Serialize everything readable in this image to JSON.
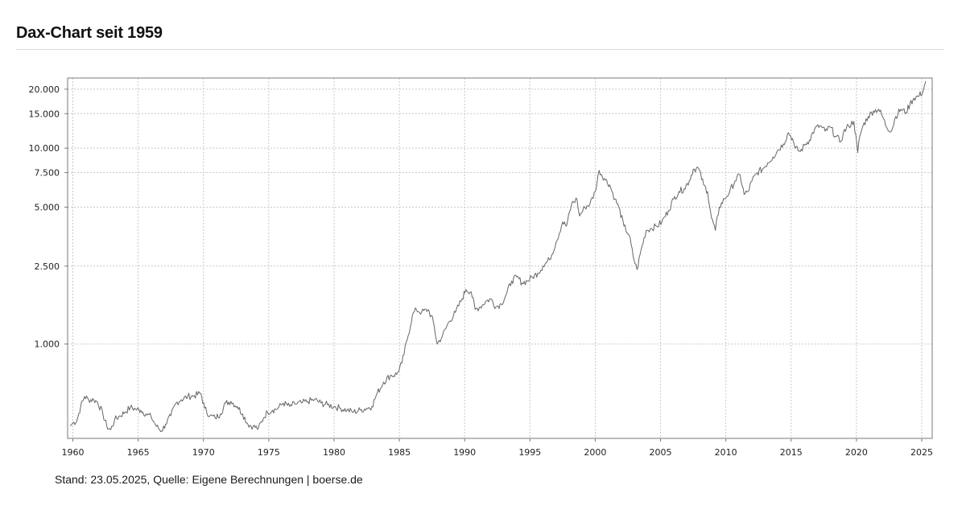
{
  "header": {
    "title": "Dax-Chart seit 1959"
  },
  "footer": {
    "source": "Stand: 23.05.2025, Quelle: Eigene Berechnungen | boerse.de"
  },
  "chart_data": {
    "type": "line",
    "title": "",
    "xlabel": "",
    "ylabel": "",
    "y_scale": "log",
    "grid": true,
    "xlim": [
      1959.6,
      2025.8
    ],
    "ylim": [
      330,
      22800
    ],
    "x_ticks": [
      1960,
      1965,
      1970,
      1975,
      1980,
      1985,
      1990,
      1995,
      2000,
      2005,
      2010,
      2015,
      2020,
      2025
    ],
    "y_ticks": [
      {
        "value": 1000,
        "label": "1.000"
      },
      {
        "value": 2500,
        "label": "2.500"
      },
      {
        "value": 5000,
        "label": "5.000"
      },
      {
        "value": 7500,
        "label": "7.500"
      },
      {
        "value": 10000,
        "label": "10.000"
      },
      {
        "value": 15000,
        "label": "15.000"
      },
      {
        "value": 20000,
        "label": "20.000"
      }
    ],
    "series": [
      {
        "color": "#666666",
        "x": [
          1959.8,
          1960.0,
          1960.3,
          1960.6,
          1960.9,
          1961.2,
          1961.6,
          1961.9,
          1962.3,
          1962.6,
          1962.9,
          1963.2,
          1963.6,
          1964.0,
          1964.4,
          1964.8,
          1965.2,
          1965.6,
          1966.0,
          1966.4,
          1966.8,
          1967.1,
          1967.5,
          1967.9,
          1968.3,
          1968.8,
          1969.3,
          1969.8,
          1970.1,
          1970.5,
          1970.9,
          1971.3,
          1971.7,
          1972.1,
          1972.6,
          1973.0,
          1973.4,
          1973.8,
          1974.2,
          1974.6,
          1974.9,
          1975.3,
          1975.7,
          1976.1,
          1976.6,
          1977.0,
          1977.5,
          1978.0,
          1978.5,
          1979.0,
          1979.5,
          1980.0,
          1980.5,
          1981.0,
          1981.5,
          1982.0,
          1982.5,
          1982.9,
          1983.3,
          1983.8,
          1984.3,
          1984.8,
          1985.2,
          1985.6,
          1986.0,
          1986.3,
          1986.7,
          1987.2,
          1987.6,
          1987.9,
          1988.3,
          1988.8,
          1989.3,
          1989.8,
          1990.1,
          1990.5,
          1990.8,
          1991.2,
          1991.6,
          1992.0,
          1992.4,
          1992.8,
          1993.2,
          1993.6,
          1994.0,
          1994.4,
          1994.8,
          1995.2,
          1995.6,
          1996.0,
          1996.5,
          1997.0,
          1997.5,
          1997.8,
          1998.2,
          1998.6,
          1998.8,
          1999.2,
          1999.6,
          2000.0,
          2000.3,
          2000.7,
          2001.1,
          2001.5,
          2001.8,
          2002.2,
          2002.6,
          2002.9,
          2003.2,
          2003.5,
          2003.9,
          2004.3,
          2004.7,
          2005.1,
          2005.6,
          2006.0,
          2006.4,
          2006.8,
          2007.2,
          2007.5,
          2007.9,
          2008.3,
          2008.6,
          2008.9,
          2009.2,
          2009.5,
          2009.9,
          2010.3,
          2010.7,
          2011.1,
          2011.4,
          2011.7,
          2012.0,
          2012.4,
          2012.8,
          2013.2,
          2013.6,
          2014.0,
          2014.4,
          2014.8,
          2015.1,
          2015.3,
          2015.7,
          2016.1,
          2016.4,
          2016.8,
          2017.2,
          2017.6,
          2018.0,
          2018.4,
          2018.8,
          2019.0,
          2019.4,
          2019.8,
          2020.1,
          2020.25,
          2020.5,
          2020.9,
          2021.3,
          2021.7,
          2022.0,
          2022.3,
          2022.7,
          2023.0,
          2023.4,
          2023.8,
          2024.1,
          2024.4,
          2024.8,
          2025.1,
          2025.3
        ],
        "values": [
          382,
          395,
          405,
          480,
          540,
          520,
          520,
          505,
          440,
          380,
          365,
          410,
          430,
          450,
          475,
          465,
          460,
          440,
          425,
          380,
          360,
          390,
          430,
          500,
          520,
          540,
          545,
          560,
          470,
          430,
          420,
          440,
          500,
          510,
          480,
          440,
          390,
          380,
          370,
          420,
          450,
          460,
          470,
          500,
          480,
          495,
          500,
          510,
          520,
          500,
          490,
          480,
          470,
          460,
          450,
          460,
          470,
          480,
          560,
          640,
          690,
          700,
          800,
          1050,
          1400,
          1500,
          1450,
          1500,
          1300,
          1000,
          1100,
          1300,
          1450,
          1700,
          1900,
          1850,
          1500,
          1550,
          1650,
          1700,
          1550,
          1600,
          1800,
          2100,
          2200,
          2050,
          2100,
          2200,
          2300,
          2500,
          2700,
          3300,
          4200,
          4000,
          5200,
          5500,
          4500,
          5000,
          5200,
          6000,
          7700,
          7000,
          6500,
          5500,
          5000,
          4000,
          3600,
          2800,
          2400,
          3000,
          3800,
          3900,
          4000,
          4200,
          4800,
          5500,
          6000,
          6200,
          6800,
          7800,
          7900,
          6500,
          6000,
          4400,
          3800,
          5000,
          5500,
          6000,
          6800,
          7300,
          5800,
          6000,
          6800,
          7500,
          7800,
          8400,
          9000,
          9800,
          10500,
          12000,
          11200,
          10000,
          9600,
          10500,
          11000,
          12500,
          13000,
          12200,
          12800,
          11500,
          10800,
          12000,
          13000,
          13700,
          9500,
          11500,
          13000,
          14500,
          15500,
          15800,
          14500,
          12800,
          12300,
          14500,
          15800,
          15200,
          16800,
          18000,
          18500,
          19500,
          22000
        ]
      }
    ]
  }
}
